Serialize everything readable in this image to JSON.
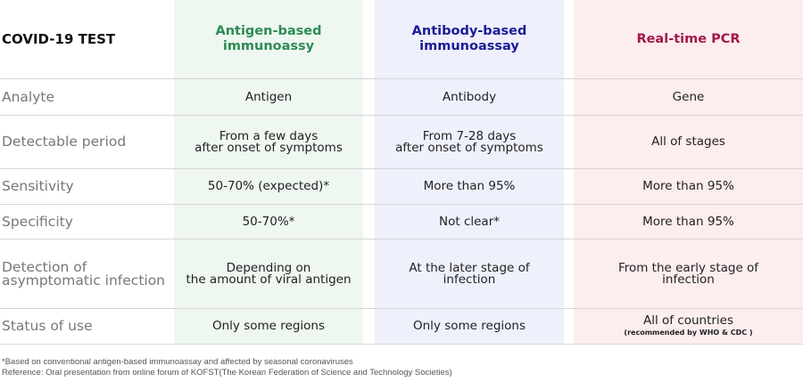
{
  "header": {
    "title": "COVID-19 TEST",
    "antigen": [
      "Antigen-based",
      "immunoassy"
    ],
    "antibody": [
      "Antibody-based",
      "immunoassay"
    ],
    "pcr": "Real-time PCR"
  },
  "rows": [
    {
      "label": [
        "Analyte"
      ],
      "antigen": [
        "Antigen"
      ],
      "antibody": [
        "Antibody"
      ],
      "pcr": [
        "Gene"
      ]
    },
    {
      "label": [
        "Detectable period"
      ],
      "antigen": [
        "From a few days",
        "after onset of symptoms"
      ],
      "antibody": [
        "From 7-28 days",
        "after onset of symptoms"
      ],
      "pcr": [
        "All of stages"
      ]
    },
    {
      "label": [
        "Sensitivity"
      ],
      "antigen": [
        "50-70% (expected)*"
      ],
      "antibody": [
        "More than 95%"
      ],
      "pcr": [
        "More than 95%"
      ]
    },
    {
      "label": [
        "Specificity"
      ],
      "antigen": [
        "50-70%*"
      ],
      "antibody": [
        "Not clear*"
      ],
      "pcr": [
        "More than 95%"
      ]
    },
    {
      "label": [
        "Detection of",
        "asymptomatic infection"
      ],
      "antigen": [
        "Depending on",
        "the amount of viral antigen"
      ],
      "antibody": [
        "At the later stage of",
        "infection"
      ],
      "pcr": [
        "From the early stage of",
        "infection"
      ]
    },
    {
      "label": [
        "Status of use"
      ],
      "antigen": [
        "Only some regions"
      ],
      "antibody": [
        "Only some regions"
      ],
      "pcr": [
        "All of countries"
      ],
      "pcr_note": "(recommended by WHO & CDC )"
    }
  ],
  "footnotes": [
    "*Based on conventional antigen-based immunoassay and affected by seasonal coronaviruses",
    "Reference: Oral presentation from online forum of KOFST(The Korean Federation of Science and Technology Societies)"
  ]
}
